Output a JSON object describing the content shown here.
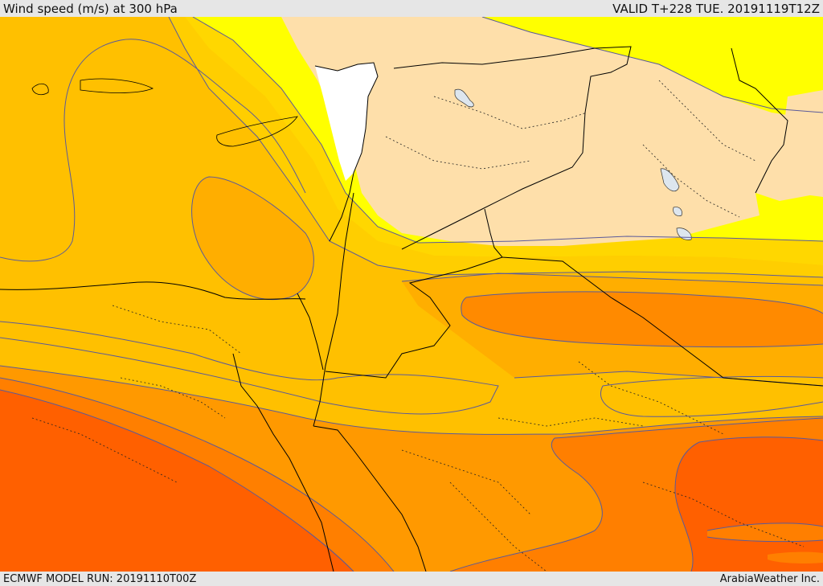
{
  "header": {
    "title": "Wind speed (m/s) at 300 hPa",
    "valid": "VALID T+228 TUE. 20191119T12Z"
  },
  "footer": {
    "model_run": "ECMWF MODEL RUN: 20191110T00Z",
    "credit": "ArabiaWeather Inc."
  },
  "colors": {
    "white": "#ffffff",
    "land_beige": "#fedfaa",
    "band_yellow": "#ffff00",
    "band_gold": "#ffd700",
    "band_amber": "#ffc000",
    "band_orange_light": "#ffae00",
    "band_orange": "#ff9900",
    "band_orange_dark": "#ff7f00",
    "band_red_orange": "#ff6000",
    "lake": "#dde6ee",
    "contour": "#5a5a9a",
    "border": "#000000"
  }
}
